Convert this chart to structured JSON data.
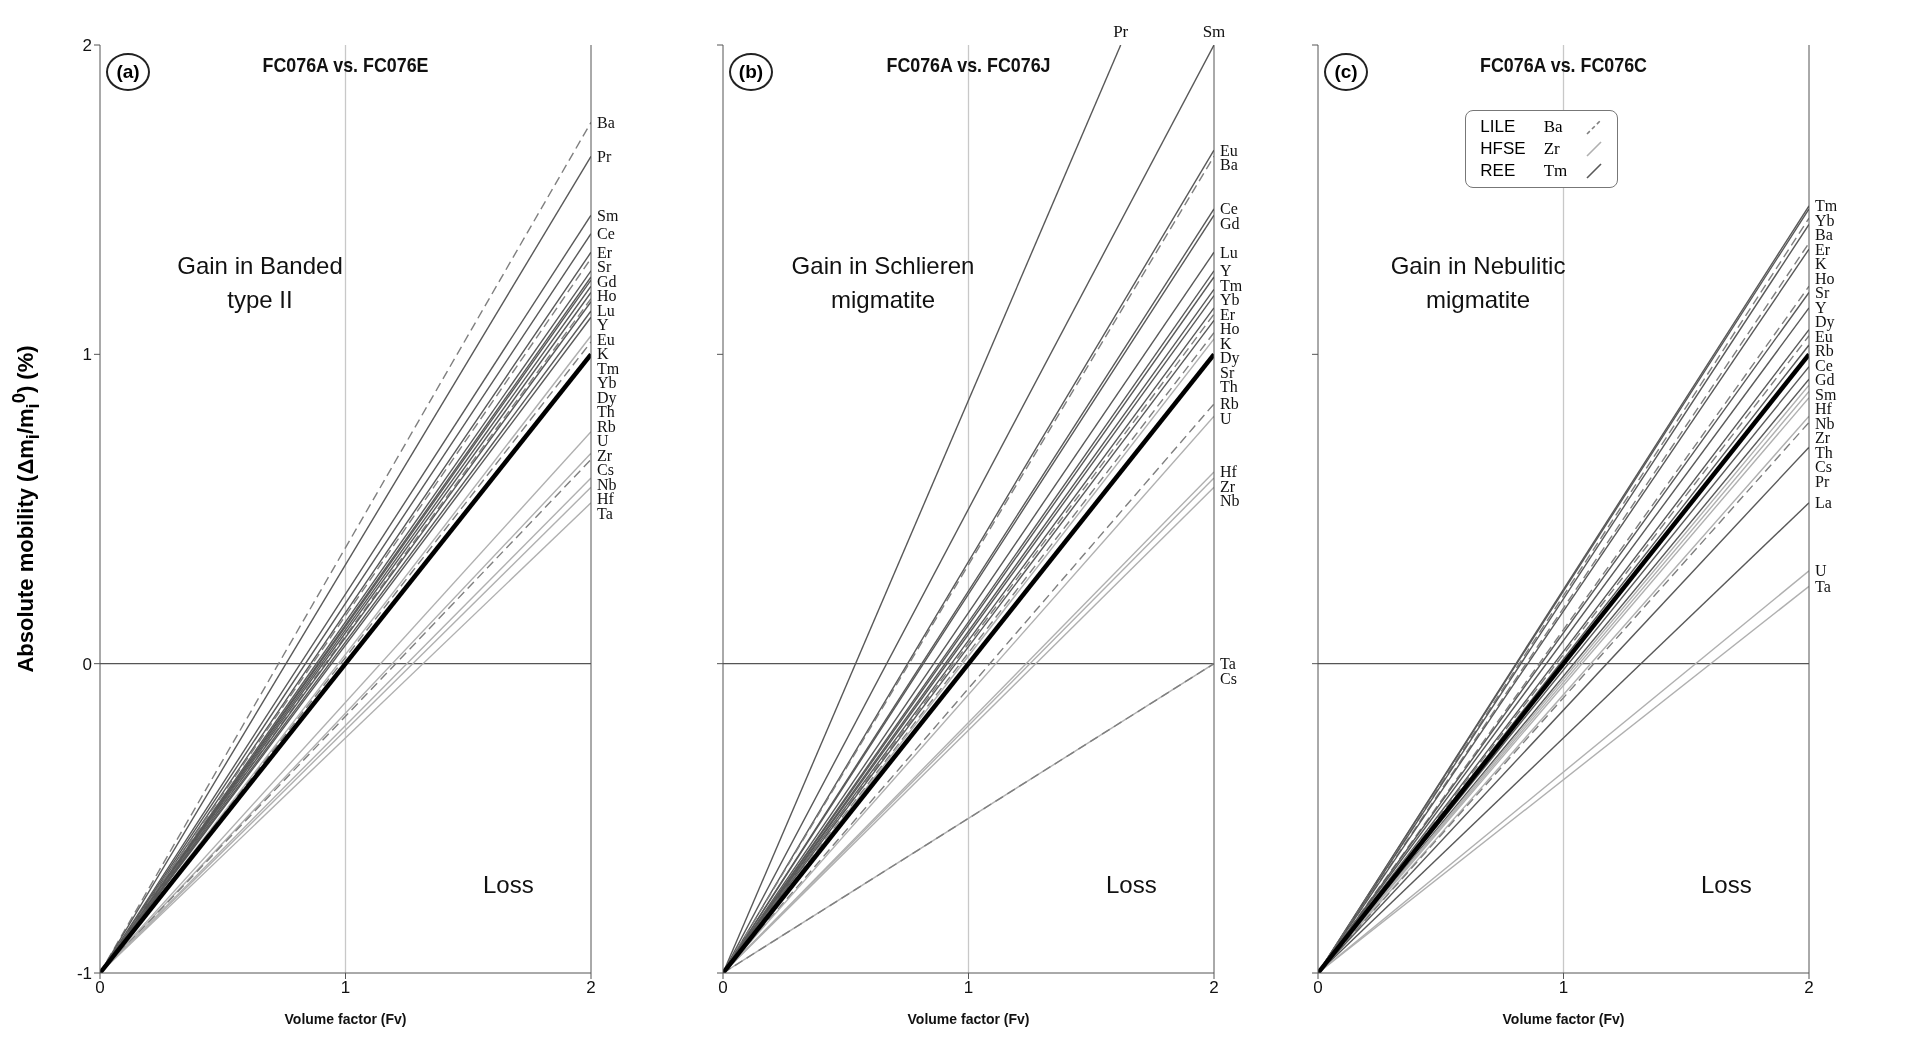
{
  "chart_data": [
    {
      "type": "line",
      "title": "FC076A vs. FC076E",
      "xlabel": "Volume factor (Fv)",
      "ylabel": "Absolute mobility (Δm$_{i}$/m$_{i}$$^{0}$) (%)",
      "xlim": [
        0,
        2
      ],
      "ylim": [
        -1,
        2
      ],
      "xticks": [
        0,
        1,
        2
      ],
      "yticks": [
        -1,
        0,
        1,
        2
      ],
      "annotations": [
        "(a)",
        "Gain in Banded type II",
        "Loss"
      ],
      "ref_lines": [
        {
          "axis": "x",
          "value": 1,
          "color": "#c8c8c8"
        },
        {
          "axis": "y",
          "value": 0,
          "color": "#555555"
        }
      ],
      "series": [
        {
          "name": "Ba",
          "color": "#7f7f7f",
          "line_style": "dashed",
          "x": [
            0,
            2
          ],
          "values": [
            -1,
            1.75
          ]
        },
        {
          "name": "Pr",
          "color": "#595959",
          "x": [
            0,
            2
          ],
          "values": [
            -1,
            1.64
          ]
        },
        {
          "name": "Sm",
          "color": "#595959",
          "x": [
            0,
            2
          ],
          "values": [
            -1,
            1.45
          ]
        },
        {
          "name": "Ce",
          "color": "#595959",
          "x": [
            0,
            2
          ],
          "values": [
            -1,
            1.39
          ]
        },
        {
          "name": "Er",
          "color": "#595959",
          "x": [
            0,
            2
          ],
          "values": [
            -1,
            1.33
          ]
        },
        {
          "name": "Sr",
          "color": "#7f7f7f",
          "line_style": "dashed",
          "x": [
            0,
            2
          ],
          "values": [
            -1,
            1.31
          ]
        },
        {
          "name": "Gd",
          "color": "#595959",
          "x": [
            0,
            2
          ],
          "values": [
            -1,
            1.27
          ]
        },
        {
          "name": "Ho",
          "color": "#595959",
          "x": [
            0,
            2
          ],
          "values": [
            -1,
            1.25
          ]
        },
        {
          "name": "Lu",
          "color": "#595959",
          "x": [
            0,
            2
          ],
          "values": [
            -1,
            1.24
          ]
        },
        {
          "name": "Y",
          "color": "#595959",
          "x": [
            0,
            2
          ],
          "values": [
            -1,
            1.22
          ]
        },
        {
          "name": "Eu",
          "color": "#595959",
          "x": [
            0,
            2
          ],
          "values": [
            -1,
            1.2
          ]
        },
        {
          "name": "K",
          "color": "#7f7f7f",
          "line_style": "dashed",
          "x": [
            0,
            2
          ],
          "values": [
            -1,
            1.18
          ]
        },
        {
          "name": "Tm",
          "color": "#595959",
          "x": [
            0,
            2
          ],
          "values": [
            -1,
            1.17
          ]
        },
        {
          "name": "Yb",
          "color": "#595959",
          "x": [
            0,
            2
          ],
          "values": [
            -1,
            1.14
          ]
        },
        {
          "name": "Dy",
          "color": "#595959",
          "x": [
            0,
            2
          ],
          "values": [
            -1,
            1.12
          ]
        },
        {
          "name": "Th",
          "color": "#b0b0b0",
          "x": [
            0,
            2
          ],
          "values": [
            -1,
            1.06
          ]
        },
        {
          "name": "Rb",
          "color": "#7f7f7f",
          "line_style": "dashed",
          "x": [
            0,
            2
          ],
          "values": [
            -1,
            1.04
          ]
        },
        {
          "name": "U",
          "color": "#b0b0b0",
          "x": [
            0,
            2
          ],
          "values": [
            -1,
            0.75
          ]
        },
        {
          "name": "Zr",
          "color": "#b0b0b0",
          "x": [
            0,
            2
          ],
          "values": [
            -1,
            0.68
          ]
        },
        {
          "name": "Cs",
          "color": "#7f7f7f",
          "line_style": "dashed",
          "x": [
            0,
            2
          ],
          "values": [
            -1,
            0.66
          ]
        },
        {
          "name": "Nb",
          "color": "#b0b0b0",
          "x": [
            0,
            2
          ],
          "values": [
            -1,
            0.6
          ]
        },
        {
          "name": "Hf",
          "color": "#b0b0b0",
          "x": [
            0,
            2
          ],
          "values": [
            -1,
            0.57
          ]
        },
        {
          "name": "Ta",
          "color": "#b0b0b0",
          "x": [
            0,
            2
          ],
          "values": [
            -1,
            0.52
          ]
        },
        {
          "color": "#000000",
          "x": [
            0,
            2
          ],
          "values": [
            -1,
            1
          ]
        }
      ]
    },
    {
      "type": "line",
      "title": "FC076A vs. FC076J",
      "xlabel": "Volume factor (Fv)",
      "xlim": [
        0,
        2
      ],
      "ylim": [
        -1,
        2
      ],
      "xticks": [
        0,
        1,
        2
      ],
      "yticks": [
        -1,
        0,
        1,
        2
      ],
      "tick_labels": "x",
      "annotations": [
        "(b)",
        "Gain in Schlieren migmatite",
        "Loss"
      ],
      "ref_lines": [
        {
          "axis": "x",
          "value": 1,
          "color": "#c8c8c8"
        },
        {
          "axis": "y",
          "value": 0,
          "color": "#555555"
        }
      ],
      "series": [
        {
          "name": "Pr",
          "color": "#595959",
          "x": [
            0,
            1.62
          ],
          "values": [
            -1,
            2
          ]
        },
        {
          "name": "Sm",
          "color": "#595959",
          "x": [
            0,
            2
          ],
          "values": [
            -1,
            2
          ]
        },
        {
          "name": "Eu",
          "color": "#595959",
          "x": [
            0,
            2
          ],
          "values": [
            -1,
            1.66
          ]
        },
        {
          "name": "Ba",
          "color": "#7f7f7f",
          "line_style": "dashed",
          "x": [
            0,
            2
          ],
          "values": [
            -1,
            1.64
          ]
        },
        {
          "name": "Ce",
          "color": "#595959",
          "x": [
            0,
            2
          ],
          "values": [
            -1,
            1.47
          ]
        },
        {
          "name": "Gd",
          "color": "#595959",
          "x": [
            0,
            2
          ],
          "values": [
            -1,
            1.45
          ]
        },
        {
          "name": "Lu",
          "color": "#595959",
          "x": [
            0,
            2
          ],
          "values": [
            -1,
            1.33
          ]
        },
        {
          "name": "Y",
          "color": "#595959",
          "x": [
            0,
            2
          ],
          "values": [
            -1,
            1.27
          ]
        },
        {
          "name": "Tm",
          "color": "#595959",
          "x": [
            0,
            2
          ],
          "values": [
            -1,
            1.25
          ]
        },
        {
          "name": "Yb",
          "color": "#595959",
          "x": [
            0,
            2
          ],
          "values": [
            -1,
            1.21
          ]
        },
        {
          "name": "Er",
          "color": "#595959",
          "x": [
            0,
            2
          ],
          "values": [
            -1,
            1.19
          ]
        },
        {
          "name": "Ho",
          "color": "#595959",
          "x": [
            0,
            2
          ],
          "values": [
            -1,
            1.15
          ]
        },
        {
          "name": "K",
          "color": "#7f7f7f",
          "line_style": "dashed",
          "x": [
            0,
            2
          ],
          "values": [
            -1,
            1.13
          ]
        },
        {
          "name": "Dy",
          "color": "#595959",
          "x": [
            0,
            2
          ],
          "values": [
            -1,
            1.11
          ]
        },
        {
          "name": "Sr",
          "color": "#7f7f7f",
          "line_style": "dashed",
          "x": [
            0,
            2
          ],
          "values": [
            -1,
            1.07
          ]
        },
        {
          "name": "Th",
          "color": "#b0b0b0",
          "x": [
            0,
            2
          ],
          "values": [
            -1,
            1.05
          ]
        },
        {
          "name": "Rb",
          "color": "#7f7f7f",
          "line_style": "dashed",
          "x": [
            0,
            2
          ],
          "values": [
            -1,
            0.84
          ]
        },
        {
          "name": "U",
          "color": "#b0b0b0",
          "x": [
            0,
            2
          ],
          "values": [
            -1,
            0.8
          ]
        },
        {
          "name": "Hf",
          "color": "#b0b0b0",
          "x": [
            0,
            2
          ],
          "values": [
            -1,
            0.62
          ]
        },
        {
          "name": "Zr",
          "color": "#b0b0b0",
          "x": [
            0,
            2
          ],
          "values": [
            -1,
            0.6
          ]
        },
        {
          "name": "Nb",
          "color": "#b0b0b0",
          "x": [
            0,
            2
          ],
          "values": [
            -1,
            0.57
          ]
        },
        {
          "name": "Ta",
          "color": "#b0b0b0",
          "x": [
            0,
            2
          ],
          "values": [
            -1,
            0
          ]
        },
        {
          "name": "Cs",
          "color": "#7f7f7f",
          "line_style": "dashed",
          "x": [
            0,
            2
          ],
          "values": [
            -1,
            0
          ]
        },
        {
          "color": "#000000",
          "x": [
            0,
            2
          ],
          "values": [
            -1,
            1
          ]
        }
      ]
    },
    {
      "type": "line",
      "title": "FC076A vs. FC076C",
      "xlabel": "Volume factor (Fv)",
      "xlim": [
        0,
        2
      ],
      "ylim": [
        -1,
        2
      ],
      "xticks": [
        0,
        1,
        2
      ],
      "yticks": [
        -1,
        0,
        1,
        2
      ],
      "tick_labels": "x",
      "annotations": [
        "(c)",
        "Gain in Nebulitic migmatite",
        "Loss",
        "LILE",
        "Ba",
        "HFSE",
        "Zr",
        "REE",
        "Tm"
      ],
      "ref_lines": [
        {
          "axis": "x",
          "value": 1,
          "color": "#c8c8c8"
        },
        {
          "axis": "y",
          "value": 0,
          "color": "#555555"
        }
      ],
      "series": [
        {
          "name": "Tm",
          "color": "#595959",
          "x": [
            0,
            2
          ],
          "values": [
            -1,
            1.48
          ]
        },
        {
          "name": "Yb",
          "color": "#595959",
          "x": [
            0,
            2
          ],
          "values": [
            -1,
            1.47
          ]
        },
        {
          "name": "Ba",
          "color": "#7f7f7f",
          "line_style": "dashed",
          "x": [
            0,
            2
          ],
          "values": [
            -1,
            1.44
          ]
        },
        {
          "name": "Er",
          "color": "#595959",
          "x": [
            0,
            2
          ],
          "values": [
            -1,
            1.42
          ]
        },
        {
          "name": "K",
          "color": "#7f7f7f",
          "line_style": "dashed",
          "x": [
            0,
            2
          ],
          "values": [
            -1,
            1.36
          ]
        },
        {
          "name": "Ho",
          "color": "#595959",
          "x": [
            0,
            2
          ],
          "values": [
            -1,
            1.34
          ]
        },
        {
          "name": "Sr",
          "color": "#7f7f7f",
          "line_style": "dashed",
          "x": [
            0,
            2
          ],
          "values": [
            -1,
            1.22
          ]
        },
        {
          "name": "Y",
          "color": "#595959",
          "x": [
            0,
            2
          ],
          "values": [
            -1,
            1.2
          ]
        },
        {
          "name": "Dy",
          "color": "#595959",
          "x": [
            0,
            2
          ],
          "values": [
            -1,
            1.15
          ]
        },
        {
          "name": "Eu",
          "color": "#595959",
          "x": [
            0,
            2
          ],
          "values": [
            -1,
            1.08
          ]
        },
        {
          "name": "Rb",
          "color": "#7f7f7f",
          "line_style": "dashed",
          "x": [
            0,
            2
          ],
          "values": [
            -1,
            1.06
          ]
        },
        {
          "name": "Ce",
          "color": "#595959",
          "x": [
            0,
            2
          ],
          "values": [
            -1,
            1.03
          ]
        },
        {
          "name": "Gd",
          "color": "#595959",
          "x": [
            0,
            2
          ],
          "values": [
            -1,
            0.96
          ]
        },
        {
          "name": "Sm",
          "color": "#595959",
          "x": [
            0,
            2
          ],
          "values": [
            -1,
            0.92
          ]
        },
        {
          "name": "Hf",
          "color": "#b0b0b0",
          "x": [
            0,
            2
          ],
          "values": [
            -1,
            0.9
          ]
        },
        {
          "name": "Nb",
          "color": "#b0b0b0",
          "x": [
            0,
            2
          ],
          "values": [
            -1,
            0.88
          ]
        },
        {
          "name": "Zr",
          "color": "#b0b0b0",
          "x": [
            0,
            2
          ],
          "values": [
            -1,
            0.86
          ]
        },
        {
          "name": "Th",
          "color": "#b0b0b0",
          "x": [
            0,
            2
          ],
          "values": [
            -1,
            0.8
          ]
        },
        {
          "name": "Cs",
          "color": "#7f7f7f",
          "line_style": "dashed",
          "x": [
            0,
            2
          ],
          "values": [
            -1,
            0.78
          ]
        },
        {
          "name": "Pr",
          "color": "#595959",
          "x": [
            0,
            2
          ],
          "values": [
            -1,
            0.7
          ]
        },
        {
          "name": "La",
          "color": "#595959",
          "x": [
            0,
            2
          ],
          "values": [
            -1,
            0.52
          ]
        },
        {
          "name": "U",
          "color": "#b0b0b0",
          "x": [
            0,
            2
          ],
          "values": [
            -1,
            0.3
          ]
        },
        {
          "name": "Ta",
          "color": "#b0b0b0",
          "x": [
            0,
            2
          ],
          "values": [
            -1,
            0.25
          ]
        },
        {
          "color": "#000000",
          "x": [
            0,
            2
          ],
          "values": [
            -1,
            1
          ]
        }
      ]
    }
  ]
}
